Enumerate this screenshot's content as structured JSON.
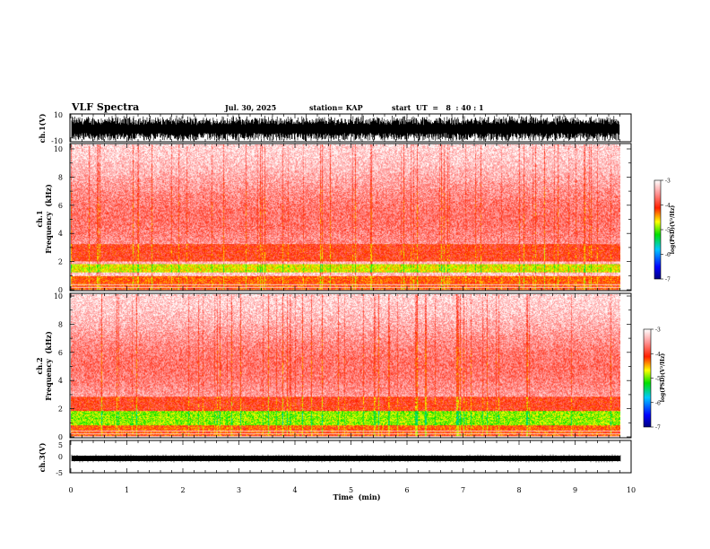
{
  "header": {
    "title": "VLF Spectra",
    "date": "Jul. 30, 2025",
    "station": "station= KAP",
    "start_time": "start  UT  =   8  : 40 : 1"
  },
  "chart_data": [
    {
      "type": "line",
      "id": "ch1-waveform",
      "ylabel": "ch.1(V)",
      "ylim": [
        -10,
        10
      ],
      "yticks": [
        10,
        -10
      ],
      "xlim": [
        0,
        10
      ],
      "description_of_signal": "dense noisy waveform, amplitude mostly between -10 and 10"
    },
    {
      "type": "heatmap",
      "id": "ch1-spectrogram",
      "ylabel": "ch.1\nFrequency  (kHz)",
      "ylim": [
        0,
        10
      ],
      "yticks": [
        0,
        2,
        4,
        6,
        8,
        10
      ],
      "xlim": [
        0,
        9.83
      ],
      "colorbar": {
        "label": "log(PSD)(V²/Hz)",
        "range": [
          -7,
          -3
        ],
        "ticks": [
          "-3",
          "-4",
          "-5",
          "-6",
          "-7"
        ]
      },
      "bands": [
        {
          "freq_khz": [
            2.0,
            3.2
          ],
          "level": -4.0
        },
        {
          "freq_khz": [
            1.2,
            1.8
          ],
          "level": -4.7
        },
        {
          "freq_khz": [
            0.0,
            1.0
          ],
          "level": -4.2
        }
      ]
    },
    {
      "type": "heatmap",
      "id": "ch2-spectrogram",
      "ylabel": "ch.2\nFrequency  (kHz)",
      "ylim": [
        0,
        10
      ],
      "yticks": [
        0,
        2,
        4,
        6,
        8,
        10
      ],
      "xlim": [
        0,
        9.83
      ],
      "colorbar": {
        "label": "log(PSD)(V²/Hz)",
        "range": [
          -7,
          -3
        ],
        "ticks": [
          "-3",
          "-4",
          "-5",
          "-6",
          "-7"
        ]
      },
      "bands": [
        {
          "freq_khz": [
            1.8,
            2.8
          ],
          "level": -4.0
        },
        {
          "freq_khz": [
            0.8,
            1.8
          ],
          "level": -4.9
        },
        {
          "freq_khz": [
            0.0,
            0.8
          ],
          "level": -4.2
        }
      ]
    },
    {
      "type": "line",
      "id": "ch3-waveform",
      "ylabel": "ch.3(V)",
      "ylim": [
        -5,
        5
      ],
      "yticks": [
        5,
        0,
        -5
      ],
      "xlim": [
        0,
        10
      ],
      "description_of_signal": "constant narrow band near -0.8 V"
    }
  ],
  "xaxis": {
    "label": "Time  (min)",
    "ticks": [
      "0",
      "1",
      "2",
      "3",
      "4",
      "5",
      "6",
      "7",
      "8",
      "9",
      "10"
    ],
    "range": [
      0,
      10
    ]
  }
}
